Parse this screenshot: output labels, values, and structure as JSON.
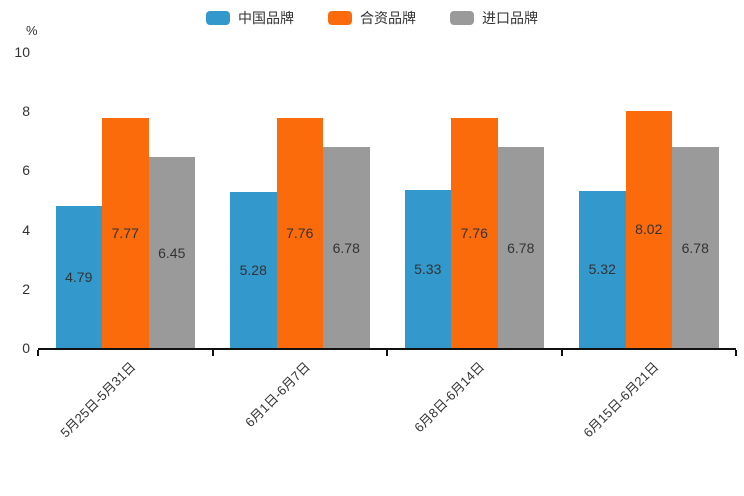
{
  "chart_data": {
    "type": "bar",
    "title": "",
    "ylabel": "%",
    "xlabel": "",
    "categories": [
      "5月25日-5月31日",
      "6月1日-6月7日",
      "6月8日-6月14日",
      "6月15日-6月21日"
    ],
    "series": [
      {
        "name": "中国品牌",
        "color": "#3398CB",
        "values": [
          4.79,
          5.28,
          5.33,
          5.32
        ]
      },
      {
        "name": "合资品牌",
        "color": "#FB6A0B",
        "values": [
          7.77,
          7.76,
          7.76,
          8.02
        ]
      },
      {
        "name": "进口品牌",
        "color": "#9A9A9A",
        "values": [
          6.45,
          6.78,
          6.78,
          6.78
        ]
      }
    ],
    "ylim": [
      0,
      10
    ],
    "yticks": [
      0,
      2,
      4,
      6,
      8,
      10
    ],
    "grid": false,
    "legend_position": "top",
    "value_label_decimals": 2,
    "label_color": "#333333",
    "axis_color": "#111111"
  }
}
